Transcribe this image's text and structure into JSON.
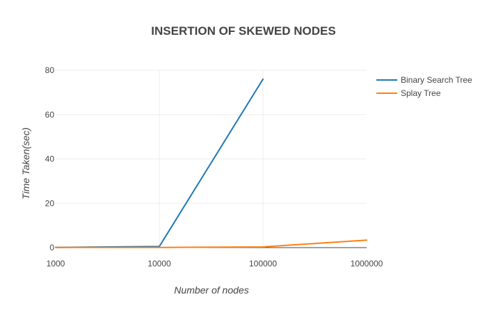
{
  "chart_data": {
    "type": "line",
    "title": "INSERTION OF SKEWED NODES",
    "xlabel": "Number of nodes",
    "ylabel": "Time Taken(sec)",
    "x_scale": "log",
    "x": [
      1000,
      10000,
      100000,
      1000000
    ],
    "x_tick_labels": [
      "1000",
      "10000",
      "100000",
      "1000000"
    ],
    "y_ticks": [
      0,
      20,
      40,
      60,
      80
    ],
    "ylim": [
      0,
      80
    ],
    "grid": true,
    "legend_position": "right",
    "series": [
      {
        "name": "Binary Search Tree",
        "color": "#1f77b4",
        "values": [
          0.1,
          0.5,
          76,
          null
        ]
      },
      {
        "name": "Splay Tree",
        "color": "#ff7f0e",
        "values": [
          0.05,
          0.1,
          0.3,
          3.4
        ]
      }
    ]
  }
}
